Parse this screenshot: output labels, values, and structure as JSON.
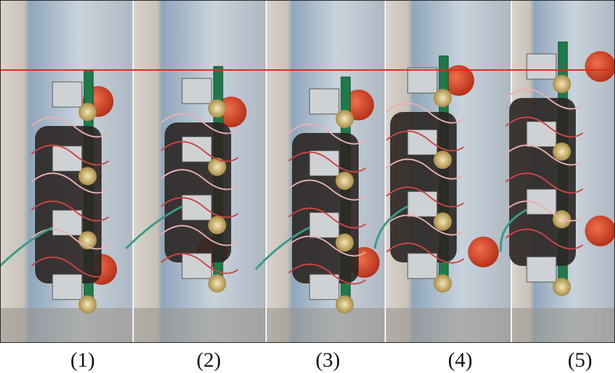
{
  "figure": {
    "panel_labels": [
      "(1)",
      "(2)",
      "(3)",
      "(4)",
      "(5)"
    ]
  }
}
